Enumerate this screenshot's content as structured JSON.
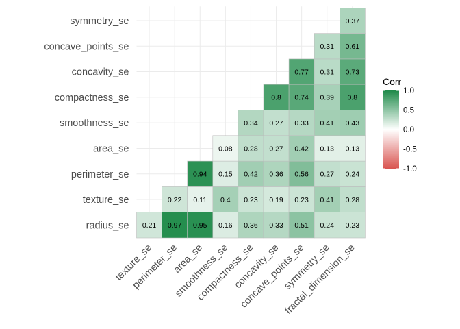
{
  "chart_data": {
    "type": "heatmap",
    "title": "",
    "xlabel": "",
    "ylabel": "",
    "x_categories": [
      "texture_se",
      "perimeter_se",
      "area_se",
      "smoothness_se",
      "compactness_se",
      "concavity_se",
      "concave_points_se",
      "symmetry_se",
      "fractal_dimension_se"
    ],
    "y_categories": [
      "radius_se",
      "texture_se",
      "perimeter_se",
      "area_se",
      "smoothness_se",
      "compactness_se",
      "concavity_se",
      "concave_points_se",
      "symmetry_se"
    ],
    "cells": [
      {
        "row": "radius_se",
        "col": "texture_se",
        "value": 0.21
      },
      {
        "row": "radius_se",
        "col": "perimeter_se",
        "value": 0.97
      },
      {
        "row": "radius_se",
        "col": "area_se",
        "value": 0.95
      },
      {
        "row": "radius_se",
        "col": "smoothness_se",
        "value": 0.16
      },
      {
        "row": "radius_se",
        "col": "compactness_se",
        "value": 0.36
      },
      {
        "row": "radius_se",
        "col": "concavity_se",
        "value": 0.33
      },
      {
        "row": "radius_se",
        "col": "concave_points_se",
        "value": 0.51
      },
      {
        "row": "radius_se",
        "col": "symmetry_se",
        "value": 0.24
      },
      {
        "row": "radius_se",
        "col": "fractal_dimension_se",
        "value": 0.23
      },
      {
        "row": "texture_se",
        "col": "perimeter_se",
        "value": 0.22
      },
      {
        "row": "texture_se",
        "col": "area_se",
        "value": 0.11
      },
      {
        "row": "texture_se",
        "col": "smoothness_se",
        "value": 0.4
      },
      {
        "row": "texture_se",
        "col": "compactness_se",
        "value": 0.23
      },
      {
        "row": "texture_se",
        "col": "concavity_se",
        "value": 0.19
      },
      {
        "row": "texture_se",
        "col": "concave_points_se",
        "value": 0.23
      },
      {
        "row": "texture_se",
        "col": "symmetry_se",
        "value": 0.41
      },
      {
        "row": "texture_se",
        "col": "fractal_dimension_se",
        "value": 0.28
      },
      {
        "row": "perimeter_se",
        "col": "area_se",
        "value": 0.94
      },
      {
        "row": "perimeter_se",
        "col": "smoothness_se",
        "value": 0.15
      },
      {
        "row": "perimeter_se",
        "col": "compactness_se",
        "value": 0.42
      },
      {
        "row": "perimeter_se",
        "col": "concavity_se",
        "value": 0.36
      },
      {
        "row": "perimeter_se",
        "col": "concave_points_se",
        "value": 0.56
      },
      {
        "row": "perimeter_se",
        "col": "symmetry_se",
        "value": 0.27
      },
      {
        "row": "perimeter_se",
        "col": "fractal_dimension_se",
        "value": 0.24
      },
      {
        "row": "area_se",
        "col": "smoothness_se",
        "value": 0.08
      },
      {
        "row": "area_se",
        "col": "compactness_se",
        "value": 0.28
      },
      {
        "row": "area_se",
        "col": "concavity_se",
        "value": 0.27
      },
      {
        "row": "area_se",
        "col": "concave_points_se",
        "value": 0.42
      },
      {
        "row": "area_se",
        "col": "symmetry_se",
        "value": 0.13
      },
      {
        "row": "area_se",
        "col": "fractal_dimension_se",
        "value": 0.13
      },
      {
        "row": "smoothness_se",
        "col": "compactness_se",
        "value": 0.34
      },
      {
        "row": "smoothness_se",
        "col": "concavity_se",
        "value": 0.27
      },
      {
        "row": "smoothness_se",
        "col": "concave_points_se",
        "value": 0.33
      },
      {
        "row": "smoothness_se",
        "col": "symmetry_se",
        "value": 0.41
      },
      {
        "row": "smoothness_se",
        "col": "fractal_dimension_se",
        "value": 0.43
      },
      {
        "row": "compactness_se",
        "col": "concavity_se",
        "value": 0.8
      },
      {
        "row": "compactness_se",
        "col": "concave_points_se",
        "value": 0.74
      },
      {
        "row": "compactness_se",
        "col": "symmetry_se",
        "value": 0.39
      },
      {
        "row": "compactness_se",
        "col": "fractal_dimension_se",
        "value": 0.8
      },
      {
        "row": "concavity_se",
        "col": "concave_points_se",
        "value": 0.77
      },
      {
        "row": "concavity_se",
        "col": "symmetry_se",
        "value": 0.31
      },
      {
        "row": "concavity_se",
        "col": "fractal_dimension_se",
        "value": 0.73
      },
      {
        "row": "concave_points_se",
        "col": "symmetry_se",
        "value": 0.31
      },
      {
        "row": "concave_points_se",
        "col": "fractal_dimension_se",
        "value": 0.61
      },
      {
        "row": "symmetry_se",
        "col": "fractal_dimension_se",
        "value": 0.37
      }
    ],
    "legend": {
      "title": "Corr",
      "placement": "right",
      "ticks": [
        "1.0",
        "0.5",
        "0.0",
        "-0.5",
        "-1.0"
      ],
      "tick_values": [
        1.0,
        0.5,
        0.0,
        -0.5,
        -1.0
      ],
      "range": [
        -1.0,
        1.0
      ]
    },
    "colors": {
      "low": "#d9534f",
      "mid": "#ffffff",
      "high": "#1e8a49",
      "cell_border": "#bdbdbd",
      "grid": "#ebebeb",
      "background": "#ffffff"
    },
    "grid": true
  }
}
